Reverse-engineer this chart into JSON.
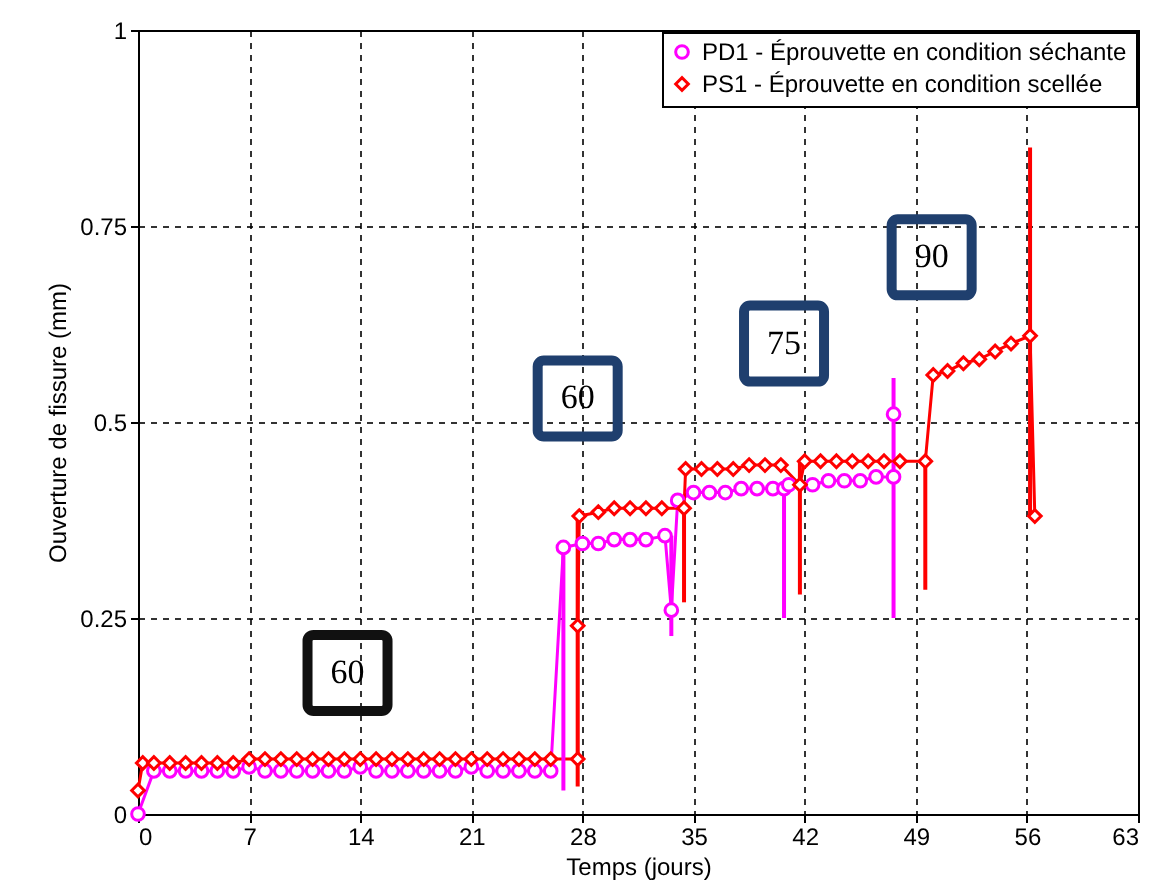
{
  "chart_data": {
    "type": "line",
    "xlabel": "Temps (jours)",
    "ylabel": "Ouverture de fissure (mm)",
    "xlim": [
      0,
      63
    ],
    "xticks": [
      0,
      7,
      14,
      21,
      28,
      35,
      42,
      49,
      56,
      63
    ],
    "ylim": [
      0,
      1
    ],
    "yticks": [
      0,
      0.25,
      0.5,
      0.75,
      1
    ],
    "grid": true,
    "legend": "top right",
    "annotations": [
      {
        "text": "60",
        "x": 13.2,
        "y": 0.18
      },
      {
        "text": "60",
        "x": 27.7,
        "y": 0.53
      },
      {
        "text": "75",
        "x": 40.7,
        "y": 0.6
      },
      {
        "text": "90",
        "x": 50,
        "y": 0.71
      }
    ],
    "series": [
      {
        "name": "PD1 - Éprouvette en condition séchante",
        "color": "#ff00ff",
        "marker": "circle",
        "x": [
          0,
          1,
          2,
          3,
          4,
          5,
          6,
          7,
          8,
          9,
          10,
          11,
          12,
          13,
          14,
          15,
          16,
          17,
          18,
          19,
          20,
          21,
          22,
          23,
          24,
          25,
          26,
          26.8,
          28,
          29,
          30,
          31,
          32,
          33.2,
          33.6,
          34,
          35,
          36,
          37,
          38,
          39,
          40,
          40.7,
          41,
          42.5,
          43.5,
          44.5,
          45.5,
          46.5,
          47.6,
          47.6
        ],
        "values": [
          0,
          0.055,
          0.055,
          0.055,
          0.055,
          0.055,
          0.055,
          0.06,
          0.055,
          0.055,
          0.055,
          0.055,
          0.055,
          0.055,
          0.06,
          0.055,
          0.055,
          0.055,
          0.055,
          0.055,
          0.055,
          0.06,
          0.055,
          0.055,
          0.055,
          0.055,
          0.055,
          0.34,
          0.345,
          0.345,
          0.35,
          0.35,
          0.35,
          0.355,
          0.26,
          0.4,
          0.41,
          0.41,
          0.41,
          0.415,
          0.415,
          0.415,
          0.415,
          0.42,
          0.42,
          0.425,
          0.425,
          0.425,
          0.43,
          0.43,
          0.51
        ],
        "errors": [
          null,
          null,
          null,
          null,
          null,
          null,
          null,
          null,
          null,
          null,
          null,
          null,
          null,
          null,
          null,
          null,
          null,
          null,
          null,
          null,
          null,
          null,
          null,
          null,
          null,
          null,
          null,
          [
            0.03,
            0.34
          ],
          null,
          null,
          null,
          null,
          null,
          null,
          [
            0.227,
            0.355
          ],
          null,
          null,
          null,
          null,
          null,
          null,
          null,
          [
            0.25,
            0.415
          ],
          null,
          null,
          null,
          null,
          null,
          null,
          null,
          [
            0.25,
            0.556
          ]
        ]
      },
      {
        "name": "PS1 - Éprouvette en condition scellée",
        "color": "#ff0000",
        "marker": "diamond",
        "x": [
          0,
          0.3,
          1,
          2,
          3,
          4,
          5,
          6,
          7,
          8,
          9,
          10,
          11,
          12,
          13,
          14,
          15,
          16,
          17,
          18,
          19,
          20,
          21,
          22,
          23,
          24,
          25,
          26,
          27.7,
          27.7,
          27.8,
          29,
          30,
          31,
          32,
          33,
          34.4,
          34.5,
          35.5,
          36.5,
          37.5,
          38.5,
          39.5,
          40.5,
          41.7,
          42,
          43,
          44,
          45,
          46,
          47,
          48,
          49.6,
          50.1,
          51,
          52,
          53,
          54,
          55,
          56.2,
          56.5
        ],
        "values": [
          0.03,
          0.065,
          0.065,
          0.065,
          0.065,
          0.065,
          0.065,
          0.065,
          0.07,
          0.07,
          0.07,
          0.07,
          0.07,
          0.07,
          0.07,
          0.07,
          0.07,
          0.07,
          0.07,
          0.07,
          0.07,
          0.07,
          0.07,
          0.07,
          0.07,
          0.07,
          0.07,
          0.07,
          0.07,
          0.24,
          0.38,
          0.385,
          0.39,
          0.39,
          0.39,
          0.39,
          0.39,
          0.44,
          0.44,
          0.44,
          0.44,
          0.445,
          0.445,
          0.445,
          0.42,
          0.45,
          0.45,
          0.45,
          0.45,
          0.45,
          0.45,
          0.45,
          0.45,
          0.56,
          0.565,
          0.575,
          0.58,
          0.59,
          0.6,
          0.61,
          0.38
        ],
        "errors": [
          null,
          null,
          null,
          null,
          null,
          null,
          null,
          null,
          null,
          null,
          null,
          null,
          null,
          null,
          null,
          null,
          null,
          null,
          null,
          null,
          null,
          null,
          null,
          null,
          null,
          null,
          null,
          null,
          null,
          [
            0.035,
            0.38
          ],
          null,
          null,
          null,
          null,
          null,
          null,
          [
            0.27,
            0.39
          ],
          null,
          null,
          null,
          null,
          null,
          null,
          null,
          [
            0.28,
            0.45
          ],
          null,
          null,
          null,
          null,
          null,
          null,
          null,
          [
            0.286,
            0.45
          ],
          null,
          null,
          null,
          null,
          null,
          null,
          [
            0.38,
            0.85
          ],
          null
        ]
      }
    ]
  }
}
